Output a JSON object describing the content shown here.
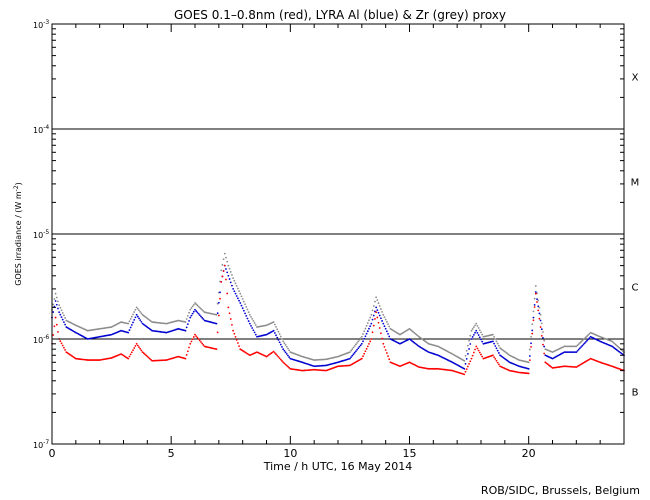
{
  "chart_data": {
    "type": "scatter",
    "title": "GOES 0.1–0.8nm (red), LYRA Al (blue) & Zr (grey) proxy",
    "xlabel": "Time / h UTC, 16 May 2014",
    "ylabel_main": "GOES irradiance / (W m",
    "ylabel_exp": "-2",
    "ylabel_end": ")",
    "footer": "ROB/SIDC, Brussels, Belgium",
    "xlim": [
      0,
      24
    ],
    "ylim": [
      1e-07,
      0.001
    ],
    "yscale": "log",
    "x_ticks": [
      {
        "value": 0,
        "label": "0"
      },
      {
        "value": 5,
        "label": "5"
      },
      {
        "value": 10,
        "label": "10"
      },
      {
        "value": 15,
        "label": "15"
      },
      {
        "value": 20,
        "label": "20"
      }
    ],
    "y_ticks": [
      {
        "exp": -7,
        "label_base": "10",
        "label_exp": "-7"
      },
      {
        "exp": -6,
        "label_base": "10",
        "label_exp": "-6"
      },
      {
        "exp": -5,
        "label_base": "10",
        "label_exp": "-5"
      },
      {
        "exp": -4,
        "label_base": "10",
        "label_exp": "-4"
      },
      {
        "exp": -3,
        "label_base": "10",
        "label_exp": "-3"
      }
    ],
    "flare_classes": [
      {
        "label": "X",
        "exp": -3.5
      },
      {
        "label": "M",
        "exp": -4.5
      },
      {
        "label": "C",
        "exp": -5.5
      },
      {
        "label": "B",
        "exp": -6.5
      }
    ],
    "threshold_lines": [
      1e-06,
      1e-05,
      0.0001
    ],
    "series": [
      {
        "name": "GOES 0.1-0.8nm",
        "color": "#ff0000",
        "points": [
          [
            0.0,
            9e-07
          ],
          [
            0.15,
            1.6e-06
          ],
          [
            0.3,
            1e-06
          ],
          [
            0.6,
            7.5e-07
          ],
          [
            1.0,
            6.5e-07
          ],
          [
            1.5,
            6.3e-07
          ],
          [
            2.0,
            6.3e-07
          ],
          [
            2.5,
            6.6e-07
          ],
          [
            2.9,
            7.2e-07
          ],
          [
            3.2,
            6.5e-07
          ],
          [
            3.55,
            9e-07
          ],
          [
            3.8,
            7.5e-07
          ],
          [
            4.2,
            6.2e-07
          ],
          [
            4.8,
            6.3e-07
          ],
          [
            5.3,
            6.8e-07
          ],
          [
            5.6,
            6.5e-07
          ],
          [
            5.8,
            9e-07
          ],
          [
            6.0,
            1.1e-06
          ],
          [
            6.4,
            8.5e-07
          ],
          [
            6.9,
            8e-07
          ],
          [
            7.1,
            3.5e-06
          ],
          [
            7.25,
            5e-06
          ],
          [
            7.4,
            2e-06
          ],
          [
            7.6,
            1.2e-06
          ],
          [
            7.9,
            8e-07
          ],
          [
            8.3,
            7e-07
          ],
          [
            8.6,
            7.5e-07
          ],
          [
            9.0,
            6.8e-07
          ],
          [
            9.3,
            7.6e-07
          ],
          [
            9.7,
            6e-07
          ],
          [
            10.0,
            5.2e-07
          ],
          [
            10.5,
            5e-07
          ],
          [
            11.0,
            5.1e-07
          ],
          [
            11.5,
            5e-07
          ],
          [
            12.0,
            5.5e-07
          ],
          [
            12.5,
            5.6e-07
          ],
          [
            13.0,
            6.5e-07
          ],
          [
            13.4,
            1e-06
          ],
          [
            13.6,
            1.8e-06
          ],
          [
            13.9,
            9e-07
          ],
          [
            14.2,
            6e-07
          ],
          [
            14.6,
            5.5e-07
          ],
          [
            15.0,
            6e-07
          ],
          [
            15.4,
            5.4e-07
          ],
          [
            15.8,
            5.2e-07
          ],
          [
            16.2,
            5.2e-07
          ],
          [
            16.8,
            5e-07
          ],
          [
            17.3,
            4.6e-07
          ],
          [
            17.6,
            6.5e-07
          ],
          [
            17.8,
            8.5e-07
          ],
          [
            18.1,
            6.5e-07
          ],
          [
            18.5,
            7e-07
          ],
          [
            18.8,
            5.5e-07
          ],
          [
            19.2,
            5e-07
          ],
          [
            19.6,
            4.8e-07
          ],
          [
            20.0,
            4.7e-07
          ],
          [
            20.3,
            2.7e-06
          ],
          [
            20.5,
            1.3e-06
          ],
          [
            20.7,
            6e-07
          ],
          [
            21.0,
            5.3e-07
          ],
          [
            21.5,
            5.5e-07
          ],
          [
            22.0,
            5.4e-07
          ],
          [
            22.6,
            6.5e-07
          ],
          [
            23.0,
            6e-07
          ],
          [
            23.5,
            5.5e-07
          ],
          [
            24.0,
            5e-07
          ]
        ]
      },
      {
        "name": "LYRA Al",
        "color": "#0000d0",
        "points": [
          [
            0.0,
            1.6e-06
          ],
          [
            0.15,
            2.3e-06
          ],
          [
            0.3,
            1.8e-06
          ],
          [
            0.6,
            1.3e-06
          ],
          [
            1.0,
            1.15e-06
          ],
          [
            1.5,
            1e-06
          ],
          [
            2.0,
            1.05e-06
          ],
          [
            2.5,
            1.1e-06
          ],
          [
            2.9,
            1.2e-06
          ],
          [
            3.2,
            1.15e-06
          ],
          [
            3.55,
            1.7e-06
          ],
          [
            3.8,
            1.4e-06
          ],
          [
            4.2,
            1.2e-06
          ],
          [
            4.8,
            1.15e-06
          ],
          [
            5.3,
            1.25e-06
          ],
          [
            5.6,
            1.2e-06
          ],
          [
            5.8,
            1.6e-06
          ],
          [
            6.0,
            1.9e-06
          ],
          [
            6.4,
            1.5e-06
          ],
          [
            6.9,
            1.4e-06
          ],
          [
            7.1,
            3.5e-06
          ],
          [
            7.25,
            5e-06
          ],
          [
            7.4,
            4e-06
          ],
          [
            7.6,
            3e-06
          ],
          [
            7.9,
            2.2e-06
          ],
          [
            8.3,
            1.4e-06
          ],
          [
            8.6,
            1.05e-06
          ],
          [
            9.0,
            1.1e-06
          ],
          [
            9.3,
            1.2e-06
          ],
          [
            9.7,
            8e-07
          ],
          [
            10.0,
            6.5e-07
          ],
          [
            10.5,
            6e-07
          ],
          [
            11.0,
            5.5e-07
          ],
          [
            11.5,
            5.6e-07
          ],
          [
            12.0,
            6e-07
          ],
          [
            12.5,
            6.5e-07
          ],
          [
            13.0,
            9e-07
          ],
          [
            13.4,
            1.4e-06
          ],
          [
            13.6,
            2e-06
          ],
          [
            13.9,
            1.4e-06
          ],
          [
            14.2,
            1e-06
          ],
          [
            14.6,
            9e-07
          ],
          [
            15.0,
            1e-06
          ],
          [
            15.4,
            8.5e-07
          ],
          [
            15.8,
            7.5e-07
          ],
          [
            16.2,
            7e-07
          ],
          [
            16.8,
            6e-07
          ],
          [
            17.3,
            5.2e-07
          ],
          [
            17.6,
            1e-06
          ],
          [
            17.8,
            1.2e-06
          ],
          [
            18.1,
            9e-07
          ],
          [
            18.5,
            9.5e-07
          ],
          [
            18.8,
            7e-07
          ],
          [
            19.2,
            6e-07
          ],
          [
            19.6,
            5.5e-07
          ],
          [
            20.0,
            5.2e-07
          ],
          [
            20.3,
            2.8e-06
          ],
          [
            20.5,
            1.5e-06
          ],
          [
            20.7,
            7e-07
          ],
          [
            21.0,
            6.5e-07
          ],
          [
            21.5,
            7.5e-07
          ],
          [
            22.0,
            7.5e-07
          ],
          [
            22.6,
            1.05e-06
          ],
          [
            23.0,
            9.5e-07
          ],
          [
            23.5,
            8.5e-07
          ],
          [
            24.0,
            7e-07
          ]
        ]
      },
      {
        "name": "Zr",
        "color": "#8c8c8c",
        "points": [
          [
            0.0,
            1.9e-06
          ],
          [
            0.15,
            2.7e-06
          ],
          [
            0.3,
            2.1e-06
          ],
          [
            0.6,
            1.5e-06
          ],
          [
            1.0,
            1.35e-06
          ],
          [
            1.5,
            1.2e-06
          ],
          [
            2.0,
            1.25e-06
          ],
          [
            2.5,
            1.3e-06
          ],
          [
            2.9,
            1.45e-06
          ],
          [
            3.2,
            1.4e-06
          ],
          [
            3.55,
            2e-06
          ],
          [
            3.8,
            1.7e-06
          ],
          [
            4.2,
            1.45e-06
          ],
          [
            4.8,
            1.4e-06
          ],
          [
            5.3,
            1.5e-06
          ],
          [
            5.6,
            1.45e-06
          ],
          [
            5.8,
            1.9e-06
          ],
          [
            6.0,
            2.2e-06
          ],
          [
            6.4,
            1.8e-06
          ],
          [
            6.9,
            1.7e-06
          ],
          [
            7.1,
            4.5e-06
          ],
          [
            7.25,
            6.5e-06
          ],
          [
            7.4,
            5e-06
          ],
          [
            7.6,
            3.8e-06
          ],
          [
            7.9,
            2.7e-06
          ],
          [
            8.3,
            1.7e-06
          ],
          [
            8.6,
            1.3e-06
          ],
          [
            9.0,
            1.35e-06
          ],
          [
            9.3,
            1.45e-06
          ],
          [
            9.7,
            9.5e-07
          ],
          [
            10.0,
            7.5e-07
          ],
          [
            10.5,
            6.8e-07
          ],
          [
            11.0,
            6.3e-07
          ],
          [
            11.5,
            6.4e-07
          ],
          [
            12.0,
            6.8e-07
          ],
          [
            12.5,
            7.5e-07
          ],
          [
            13.0,
            1.05e-06
          ],
          [
            13.4,
            1.7e-06
          ],
          [
            13.6,
            2.5e-06
          ],
          [
            13.9,
            1.7e-06
          ],
          [
            14.2,
            1.25e-06
          ],
          [
            14.6,
            1.1e-06
          ],
          [
            15.0,
            1.25e-06
          ],
          [
            15.4,
            1.05e-06
          ],
          [
            15.8,
            9e-07
          ],
          [
            16.2,
            8.5e-07
          ],
          [
            16.8,
            7.2e-07
          ],
          [
            17.3,
            6.2e-07
          ],
          [
            17.6,
            1.2e-06
          ],
          [
            17.8,
            1.4e-06
          ],
          [
            18.1,
            1.05e-06
          ],
          [
            18.5,
            1.1e-06
          ],
          [
            18.8,
            8.2e-07
          ],
          [
            19.2,
            7e-07
          ],
          [
            19.6,
            6.3e-07
          ],
          [
            20.0,
            6e-07
          ],
          [
            20.3,
            3.2e-06
          ],
          [
            20.5,
            1.7e-06
          ],
          [
            20.7,
            8e-07
          ],
          [
            21.0,
            7.5e-07
          ],
          [
            21.5,
            8.5e-07
          ],
          [
            22.0,
            8.5e-07
          ],
          [
            22.6,
            1.15e-06
          ],
          [
            23.0,
            1.05e-06
          ],
          [
            23.5,
            9.5e-07
          ],
          [
            24.0,
            7.5e-07
          ]
        ]
      }
    ]
  }
}
